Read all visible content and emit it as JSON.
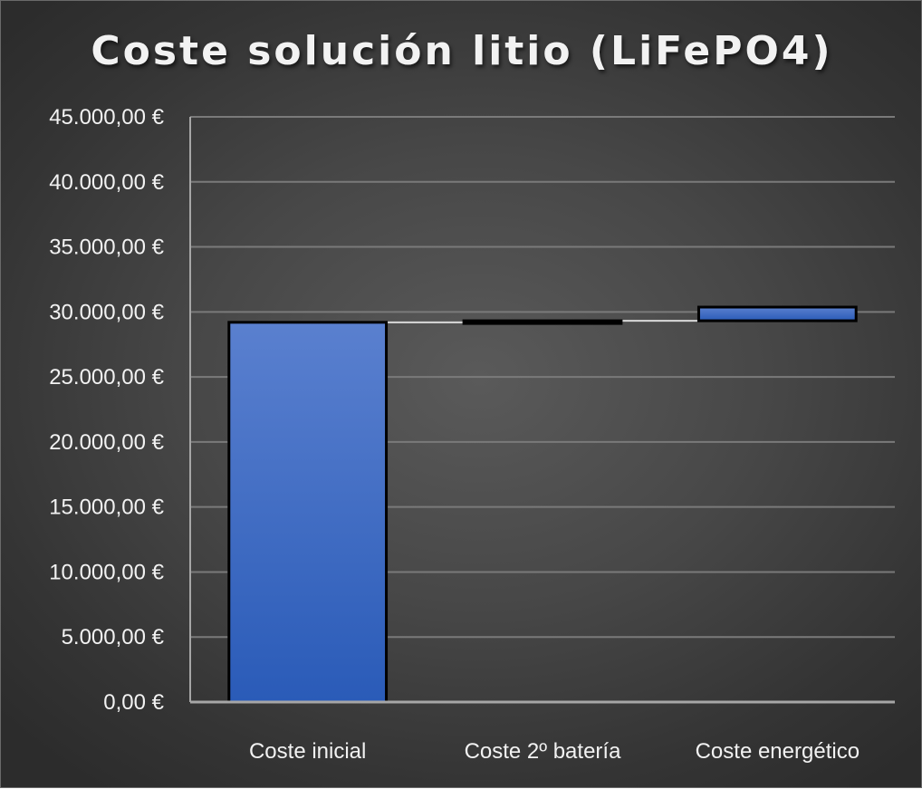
{
  "chart_data": {
    "type": "waterfall",
    "title": "Coste solución litio (LiFePO4)",
    "categories": [
      "Coste inicial",
      "Coste 2º batería",
      "Coste energético"
    ],
    "values": [
      29200,
      120,
      1050
    ],
    "ylim": [
      0,
      45000
    ],
    "ytick_step": 5000,
    "ytick_labels": [
      "0,00 €",
      "5.000,00 €",
      "10.000,00 €",
      "15.000,00 €",
      "20.000,00 €",
      "25.000,00 €",
      "30.000,00 €",
      "35.000,00 €",
      "40.000,00 €",
      "45.000,00 €"
    ],
    "grid": true,
    "legend": "none",
    "colors": {
      "bar_top": "#5a80cf",
      "bar_bottom": "#2a5bb8",
      "bar_border": "#000000",
      "connector": "#d9d9d9",
      "gridline": "#7a7a7a",
      "axis": "#a6a6a6"
    }
  }
}
